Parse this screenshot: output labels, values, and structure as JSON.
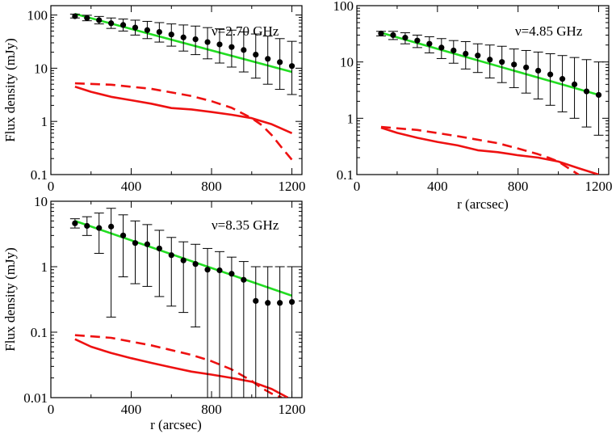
{
  "figure": {
    "colors": {
      "fit": "#22dd22",
      "model": "#ee1111",
      "points": "#000000",
      "axes": "#000000"
    }
  },
  "chart_data": [
    {
      "type": "scatter",
      "annotation": "ν=2.70 GHz",
      "xlabel": "",
      "ylabel": "Flux density (mJy)",
      "xscale": "linear",
      "yscale": "log",
      "xlim": [
        0,
        1250
      ],
      "ylim": [
        0.1,
        150
      ],
      "xticks": [
        0,
        400,
        800,
        1200
      ],
      "xtick_labels": [
        "0",
        "400",
        "800",
        "1200"
      ],
      "yticks": [
        0.1,
        1,
        10,
        100
      ],
      "ytick_labels": [
        "0.1",
        "1",
        "10",
        "100"
      ],
      "data_points": {
        "x": [
          120,
          180,
          240,
          300,
          360,
          420,
          480,
          540,
          600,
          660,
          720,
          780,
          840,
          900,
          960,
          1020,
          1080,
          1140,
          1200
        ],
        "y": [
          95,
          88,
          80,
          70,
          65,
          58,
          52,
          48,
          43,
          38,
          35,
          31,
          28,
          25,
          22,
          18,
          15,
          13,
          11
        ],
        "err_low": [
          88,
          78,
          68,
          56,
          50,
          42,
          36,
          31,
          26,
          21,
          18,
          15,
          12.5,
          10.5,
          8.5,
          6.5,
          5,
          4,
          3.2
        ],
        "err_high": [
          104,
          99,
          94,
          88,
          84,
          80,
          76,
          72,
          68,
          65,
          62,
          58,
          55,
          52,
          48,
          44,
          40,
          36,
          32
        ]
      },
      "series": [
        {
          "name": "fit",
          "style": "solid",
          "color": "#22dd22",
          "x": [
            120,
            1200
          ],
          "y": [
            105,
            8.5
          ]
        },
        {
          "name": "model-dashed",
          "style": "dashed",
          "color": "#ee1111",
          "x": [
            120,
            300,
            500,
            700,
            800,
            900,
            1000,
            1050,
            1100,
            1150,
            1200
          ],
          "y": [
            5.2,
            4.9,
            4.1,
            3.0,
            2.4,
            1.8,
            1.15,
            0.85,
            0.55,
            0.32,
            0.19
          ]
        },
        {
          "name": "model-solid",
          "style": "solid",
          "color": "#ee1111",
          "x": [
            120,
            200,
            300,
            400,
            500,
            600,
            700,
            800,
            900,
            1000,
            1100,
            1200
          ],
          "y": [
            4.5,
            3.6,
            2.9,
            2.5,
            2.15,
            1.78,
            1.68,
            1.5,
            1.33,
            1.15,
            0.88,
            0.6
          ]
        }
      ]
    },
    {
      "type": "scatter",
      "annotation": "ν=4.85 GHz",
      "xlabel": "r (arcsec)",
      "ylabel": "",
      "xscale": "linear",
      "yscale": "log",
      "xlim": [
        0,
        1250
      ],
      "ylim": [
        0.1,
        100
      ],
      "xticks": [
        0,
        400,
        800,
        1200
      ],
      "xtick_labels": [
        "0",
        "400",
        "800",
        "1200"
      ],
      "yticks": [
        0.1,
        1,
        10,
        100
      ],
      "ytick_labels": [
        "0.1",
        "1",
        "10",
        "100"
      ],
      "data_points": {
        "x": [
          120,
          180,
          240,
          300,
          360,
          420,
          480,
          540,
          600,
          660,
          720,
          780,
          840,
          900,
          960,
          1020,
          1080,
          1140,
          1200
        ],
        "y": [
          32,
          30,
          27,
          24,
          21,
          18,
          16,
          14,
          13,
          11,
          10,
          9,
          8,
          7,
          6,
          5,
          4,
          3,
          2.6
        ],
        "err_low": [
          29,
          25,
          21,
          18,
          14.5,
          11.5,
          9.5,
          7.5,
          6.5,
          5.2,
          4.3,
          3.5,
          2.8,
          2.2,
          1.7,
          1.3,
          1.0,
          0.7,
          0.5
        ],
        "err_high": [
          35,
          35,
          33,
          30,
          28,
          26,
          24,
          23,
          21,
          20,
          19,
          17,
          16,
          15,
          14,
          13,
          12,
          11,
          10
        ]
      },
      "series": [
        {
          "name": "fit",
          "style": "solid",
          "color": "#22dd22",
          "x": [
            120,
            1200
          ],
          "y": [
            33,
            2.6
          ]
        },
        {
          "name": "model-dashed",
          "style": "dashed",
          "color": "#ee1111",
          "x": [
            120,
            300,
            500,
            700,
            800,
            900,
            950,
            1000,
            1050,
            1100
          ],
          "y": [
            0.7,
            0.62,
            0.48,
            0.36,
            0.29,
            0.23,
            0.2,
            0.17,
            0.13,
            0.1
          ]
        },
        {
          "name": "model-solid",
          "style": "solid",
          "color": "#ee1111",
          "x": [
            120,
            200,
            300,
            400,
            500,
            600,
            700,
            800,
            900,
            1000,
            1100,
            1200
          ],
          "y": [
            0.68,
            0.55,
            0.45,
            0.38,
            0.33,
            0.27,
            0.25,
            0.22,
            0.2,
            0.17,
            0.13,
            0.1
          ]
        }
      ]
    },
    {
      "type": "scatter",
      "annotation": "ν=8.35 GHz",
      "xlabel": "r (arcsec)",
      "ylabel": "Flux density (mJy)",
      "xscale": "linear",
      "yscale": "log",
      "xlim": [
        0,
        1250
      ],
      "ylim": [
        0.01,
        10
      ],
      "xticks": [
        0,
        400,
        800,
        1200
      ],
      "xtick_labels": [
        "0",
        "400",
        "800",
        "1200"
      ],
      "yticks": [
        0.01,
        0.1,
        1,
        10
      ],
      "ytick_labels": [
        "0.01",
        "0.1",
        "1",
        "10"
      ],
      "data_points": {
        "x": [
          120,
          180,
          240,
          300,
          360,
          420,
          480,
          540,
          600,
          660,
          720,
          780,
          840,
          900,
          960,
          1020,
          1080,
          1140,
          1200
        ],
        "y": [
          4.6,
          4.2,
          3.9,
          4.1,
          3.0,
          2.3,
          2.2,
          1.9,
          1.5,
          1.25,
          1.1,
          0.9,
          0.88,
          0.78,
          0.63,
          0.3,
          0.28,
          0.28,
          0.29
        ],
        "err_low": [
          3.9,
          3.0,
          1.6,
          0.17,
          0.7,
          0.55,
          0.5,
          0.35,
          0.25,
          0.2,
          0.12,
          0.01,
          0.01,
          0.01,
          0.01,
          0.01,
          0.01,
          0.01,
          0.01
        ],
        "err_high": [
          5.4,
          5.8,
          6.6,
          7.8,
          6.2,
          5.0,
          4.4,
          3.6,
          2.8,
          2.4,
          2.2,
          1.9,
          1.7,
          1.4,
          1.2,
          1.0,
          1.0,
          1.0,
          1.0
        ]
      },
      "series": [
        {
          "name": "fit",
          "style": "solid",
          "color": "#22dd22",
          "x": [
            120,
            1200
          ],
          "y": [
            5.0,
            0.36
          ]
        },
        {
          "name": "model-dashed",
          "style": "dashed",
          "color": "#ee1111",
          "x": [
            120,
            300,
            500,
            700,
            800,
            900,
            1000,
            1050,
            1100,
            1150
          ],
          "y": [
            0.09,
            0.082,
            0.063,
            0.045,
            0.036,
            0.027,
            0.018,
            0.014,
            0.0115,
            0.01
          ]
        },
        {
          "name": "model-solid",
          "style": "solid",
          "color": "#ee1111",
          "x": [
            120,
            200,
            300,
            400,
            500,
            600,
            700,
            800,
            900,
            1000,
            1100,
            1180
          ],
          "y": [
            0.078,
            0.06,
            0.048,
            0.04,
            0.034,
            0.029,
            0.025,
            0.0225,
            0.02,
            0.0175,
            0.0135,
            0.01
          ]
        }
      ]
    }
  ]
}
